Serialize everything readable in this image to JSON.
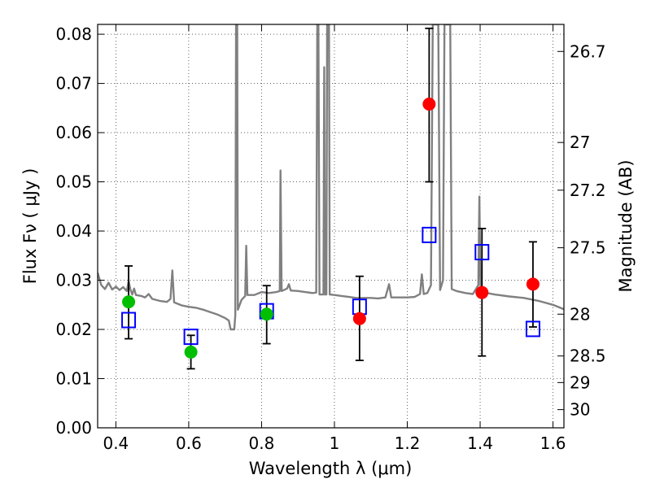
{
  "chart_data": {
    "type": "scatter",
    "xlabel": "Wavelength  λ (μm)",
    "ylabel": "Flux  Fν  ( μJy )",
    "y2label": "Magnitude (AB)",
    "xlim": [
      0.35,
      1.63
    ],
    "ylim": [
      0.0,
      0.082
    ],
    "x_ticks": [
      0.4,
      0.6,
      0.8,
      1.0,
      1.2,
      1.4,
      1.6
    ],
    "x_tick_labels": [
      "0.4",
      "0.6",
      "0.8",
      "1",
      "1.2",
      "1.4",
      "1.6"
    ],
    "y_ticks": [
      0.0,
      0.01,
      0.02,
      0.03,
      0.04,
      0.05,
      0.06,
      0.07,
      0.08
    ],
    "y_tick_labels": [
      "0.00",
      "0.01",
      "0.02",
      "0.03",
      "0.04",
      "0.05",
      "0.06",
      "0.07",
      "0.08"
    ],
    "y2_ticks": [
      {
        "label": "26.7",
        "flux": 0.0765
      },
      {
        "label": "27",
        "flux": 0.058
      },
      {
        "label": "27.2",
        "flux": 0.0483
      },
      {
        "label": "27.5",
        "flux": 0.0366
      },
      {
        "label": "28",
        "flux": 0.0231
      },
      {
        "label": "28.5",
        "flux": 0.0146
      },
      {
        "label": "29",
        "flux": 0.0092
      },
      {
        "label": "30",
        "flux": 0.0037
      }
    ],
    "grid": true,
    "series": [
      {
        "marker": "circle",
        "color": "#00bf00",
        "points": [
          {
            "x": 0.435,
            "y": 0.0256,
            "yerr_low": 0.0181,
            "yerr_high": 0.0329
          },
          {
            "x": 0.606,
            "y": 0.0154,
            "yerr_low": 0.012,
            "yerr_high": 0.0188
          },
          {
            "x": 0.814,
            "y": 0.0231,
            "yerr_low": 0.0171,
            "yerr_high": 0.0289
          }
        ]
      },
      {
        "marker": "circle",
        "color": "#ff0000",
        "points": [
          {
            "x": 1.069,
            "y": 0.0222,
            "yerr_low": 0.0137,
            "yerr_high": 0.0308
          },
          {
            "x": 1.26,
            "y": 0.0658,
            "yerr_low": 0.05,
            "yerr_high": 0.0812
          },
          {
            "x": 1.405,
            "y": 0.0275,
            "yerr_low": 0.0146,
            "yerr_high": 0.0405
          },
          {
            "x": 1.545,
            "y": 0.0292,
            "yerr_low": 0.0205,
            "yerr_high": 0.0378
          }
        ]
      },
      {
        "marker": "open-square",
        "color": "#0000ff",
        "points": [
          {
            "x": 0.435,
            "y": 0.0219
          },
          {
            "x": 0.606,
            "y": 0.0185
          },
          {
            "x": 0.814,
            "y": 0.0237
          },
          {
            "x": 1.069,
            "y": 0.0246
          },
          {
            "x": 1.26,
            "y": 0.0392
          },
          {
            "x": 1.405,
            "y": 0.0357
          },
          {
            "x": 1.545,
            "y": 0.0201
          }
        ]
      }
    ],
    "spectrum": {
      "color": "#808080",
      "points": [
        [
          0.35,
          0.0315
        ],
        [
          0.36,
          0.029
        ],
        [
          0.37,
          0.0282
        ],
        [
          0.38,
          0.0295
        ],
        [
          0.39,
          0.0281
        ],
        [
          0.4,
          0.0287
        ],
        [
          0.41,
          0.028
        ],
        [
          0.42,
          0.0286
        ],
        [
          0.43,
          0.0278
        ],
        [
          0.435,
          0.0298
        ],
        [
          0.44,
          0.0281
        ],
        [
          0.445,
          0.0271
        ],
        [
          0.45,
          0.0283
        ],
        [
          0.455,
          0.027
        ],
        [
          0.47,
          0.0268
        ],
        [
          0.48,
          0.0265
        ],
        [
          0.49,
          0.0272
        ],
        [
          0.5,
          0.0262
        ],
        [
          0.52,
          0.0258
        ],
        [
          0.54,
          0.0256
        ],
        [
          0.55,
          0.0262
        ],
        [
          0.555,
          0.032
        ],
        [
          0.56,
          0.0255
        ],
        [
          0.58,
          0.0249
        ],
        [
          0.6,
          0.0246
        ],
        [
          0.62,
          0.0244
        ],
        [
          0.64,
          0.024
        ],
        [
          0.66,
          0.0235
        ],
        [
          0.68,
          0.023
        ],
        [
          0.7,
          0.0223
        ],
        [
          0.71,
          0.0218
        ],
        [
          0.715,
          0.02
        ],
        [
          0.725,
          0.02
        ],
        [
          0.728,
          0.023
        ],
        [
          0.73,
          0.082
        ],
        [
          0.733,
          0.082
        ],
        [
          0.735,
          0.024
        ],
        [
          0.745,
          0.026
        ],
        [
          0.755,
          0.0268
        ],
        [
          0.758,
          0.037
        ],
        [
          0.761,
          0.027
        ],
        [
          0.78,
          0.027
        ],
        [
          0.8,
          0.0276
        ],
        [
          0.82,
          0.0274
        ],
        [
          0.84,
          0.0276
        ],
        [
          0.85,
          0.0278
        ],
        [
          0.852,
          0.0523
        ],
        [
          0.855,
          0.0278
        ],
        [
          0.87,
          0.0283
        ],
        [
          0.875,
          0.0292
        ],
        [
          0.88,
          0.0279
        ],
        [
          0.9,
          0.0278
        ],
        [
          0.92,
          0.0276
        ],
        [
          0.94,
          0.0274
        ],
        [
          0.95,
          0.0275
        ],
        [
          0.953,
          0.082
        ],
        [
          0.956,
          0.082
        ],
        [
          0.959,
          0.0271
        ],
        [
          0.97,
          0.0271
        ],
        [
          0.972,
          0.0733
        ],
        [
          0.974,
          0.0271
        ],
        [
          0.978,
          0.0271
        ],
        [
          0.98,
          0.082
        ],
        [
          0.985,
          0.082
        ],
        [
          0.987,
          0.0271
        ],
        [
          1.0,
          0.027
        ],
        [
          1.02,
          0.0268
        ],
        [
          1.04,
          0.0266
        ],
        [
          1.06,
          0.0264
        ],
        [
          1.08,
          0.0264
        ],
        [
          1.1,
          0.0264
        ],
        [
          1.12,
          0.0263
        ],
        [
          1.14,
          0.0265
        ],
        [
          1.15,
          0.0292
        ],
        [
          1.156,
          0.0265
        ],
        [
          1.18,
          0.0265
        ],
        [
          1.2,
          0.0265
        ],
        [
          1.22,
          0.0266
        ],
        [
          1.235,
          0.0272
        ],
        [
          1.24,
          0.0312
        ],
        [
          1.245,
          0.0272
        ],
        [
          1.255,
          0.0274
        ],
        [
          1.265,
          0.029
        ],
        [
          1.27,
          0.082
        ],
        [
          1.285,
          0.082
        ],
        [
          1.29,
          0.028
        ],
        [
          1.298,
          0.03
        ],
        [
          1.302,
          0.082
        ],
        [
          1.318,
          0.082
        ],
        [
          1.322,
          0.0282
        ],
        [
          1.335,
          0.0278
        ],
        [
          1.36,
          0.0274
        ],
        [
          1.38,
          0.0272
        ],
        [
          1.395,
          0.029
        ],
        [
          1.398,
          0.047
        ],
        [
          1.401,
          0.029
        ],
        [
          1.405,
          0.0276
        ],
        [
          1.44,
          0.0271
        ],
        [
          1.48,
          0.0267
        ],
        [
          1.52,
          0.0264
        ],
        [
          1.56,
          0.0258
        ],
        [
          1.6,
          0.025
        ],
        [
          1.63,
          0.0241
        ]
      ]
    }
  }
}
